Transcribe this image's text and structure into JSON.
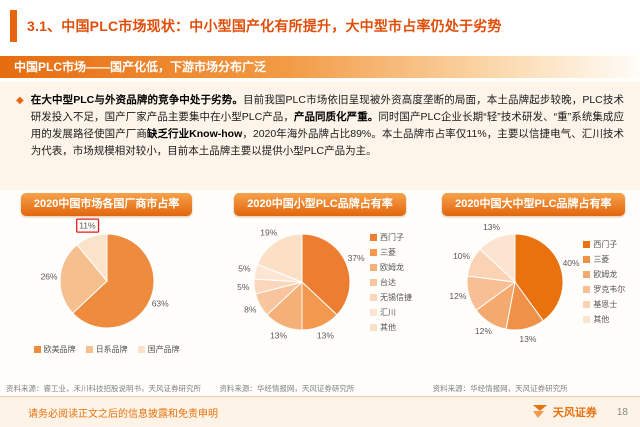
{
  "colors": {
    "accent": "#e8650f",
    "title": "#e04e09",
    "banner_start": "#e76c10",
    "pill_top": "#f6a24c",
    "pill_bottom": "#e2660d",
    "highlight_box": "#e31b1b",
    "label_text": "#595959",
    "source_text": "#808080",
    "footer_text": "#e8720f"
  },
  "header": {
    "title": "3.1、中国PLC市场现状：中小型国产化有所提升，大中型市占率仍处于劣势"
  },
  "banner": {
    "text": "中国PLC市场——国产化低，下游市场分布广泛"
  },
  "paragraph": {
    "bullet": "◆",
    "segments": [
      {
        "t": "在大中型PLC与外资品牌的竞争中处于劣势。",
        "b": true
      },
      {
        "t": "目前我国PLC市场依旧呈现被外资高度垄断的局面，本土品牌起步较晚，PLC技术研发投入不足，国产厂家产品主要集中在小型PLC产品，",
        "b": false
      },
      {
        "t": "产品同质化严重。",
        "b": true
      },
      {
        "t": "同时国产PLC企业长期“轻”技术研发、“重”系统集成应用的发展路径使国产厂商",
        "b": false
      },
      {
        "t": "缺乏行业Know-how",
        "b": true
      },
      {
        "t": "，2020年海外品牌占比89%。本土品牌市占率仅11%，主要以信捷电气、汇川技术为代表，市场规模相对较小，目前本土品牌主要以提供小型PLC产品为主。",
        "b": false
      }
    ]
  },
  "chart_data": [
    {
      "type": "pie",
      "title": "2020中国市场各国厂商市占率",
      "categories": [
        "欧美品牌",
        "日系品牌",
        "国产品牌"
      ],
      "values": [
        63,
        26,
        11
      ],
      "colors": [
        "#ee8b3e",
        "#f6bf8e",
        "#fbe3c9"
      ],
      "highlight_index": 2,
      "legend_position": "bottom",
      "source": "资料来源：睿工业，禾川科技招股说明书，天风证券研究所"
    },
    {
      "type": "pie",
      "title": "2020中国小型PLC品牌占有率",
      "categories": [
        "西门子",
        "三菱",
        "欧姆龙",
        "台达",
        "无锡信捷",
        "汇川",
        "其他"
      ],
      "values": [
        37,
        13,
        13,
        8,
        5,
        5,
        19
      ],
      "colors": [
        "#ed7d31",
        "#f2994f",
        "#f5b077",
        "#f8c59e",
        "#fad7bb",
        "#fce6d3",
        "#fbe0c6"
      ],
      "legend_position": "right",
      "source": "资料来源：华经情报网，天风证券研究所"
    },
    {
      "type": "pie",
      "title": "2020中国大中型PLC品牌占有率",
      "categories": [
        "西门子",
        "三菱",
        "欧姆龙",
        "罗克韦尔",
        "基恩士",
        "其他"
      ],
      "values": [
        40,
        13,
        12,
        12,
        10,
        13
      ],
      "colors": [
        "#e9720e",
        "#f0914a",
        "#f4a96e",
        "#f7bf93",
        "#fad3b4",
        "#fce5d0"
      ],
      "legend_position": "right",
      "source": "资料来源：华经情报网，天风证券研究所"
    }
  ],
  "footer": {
    "disclaimer": "请务必阅读正文之后的信息披露和免责申明",
    "brand": "天风证券",
    "page": "18"
  }
}
